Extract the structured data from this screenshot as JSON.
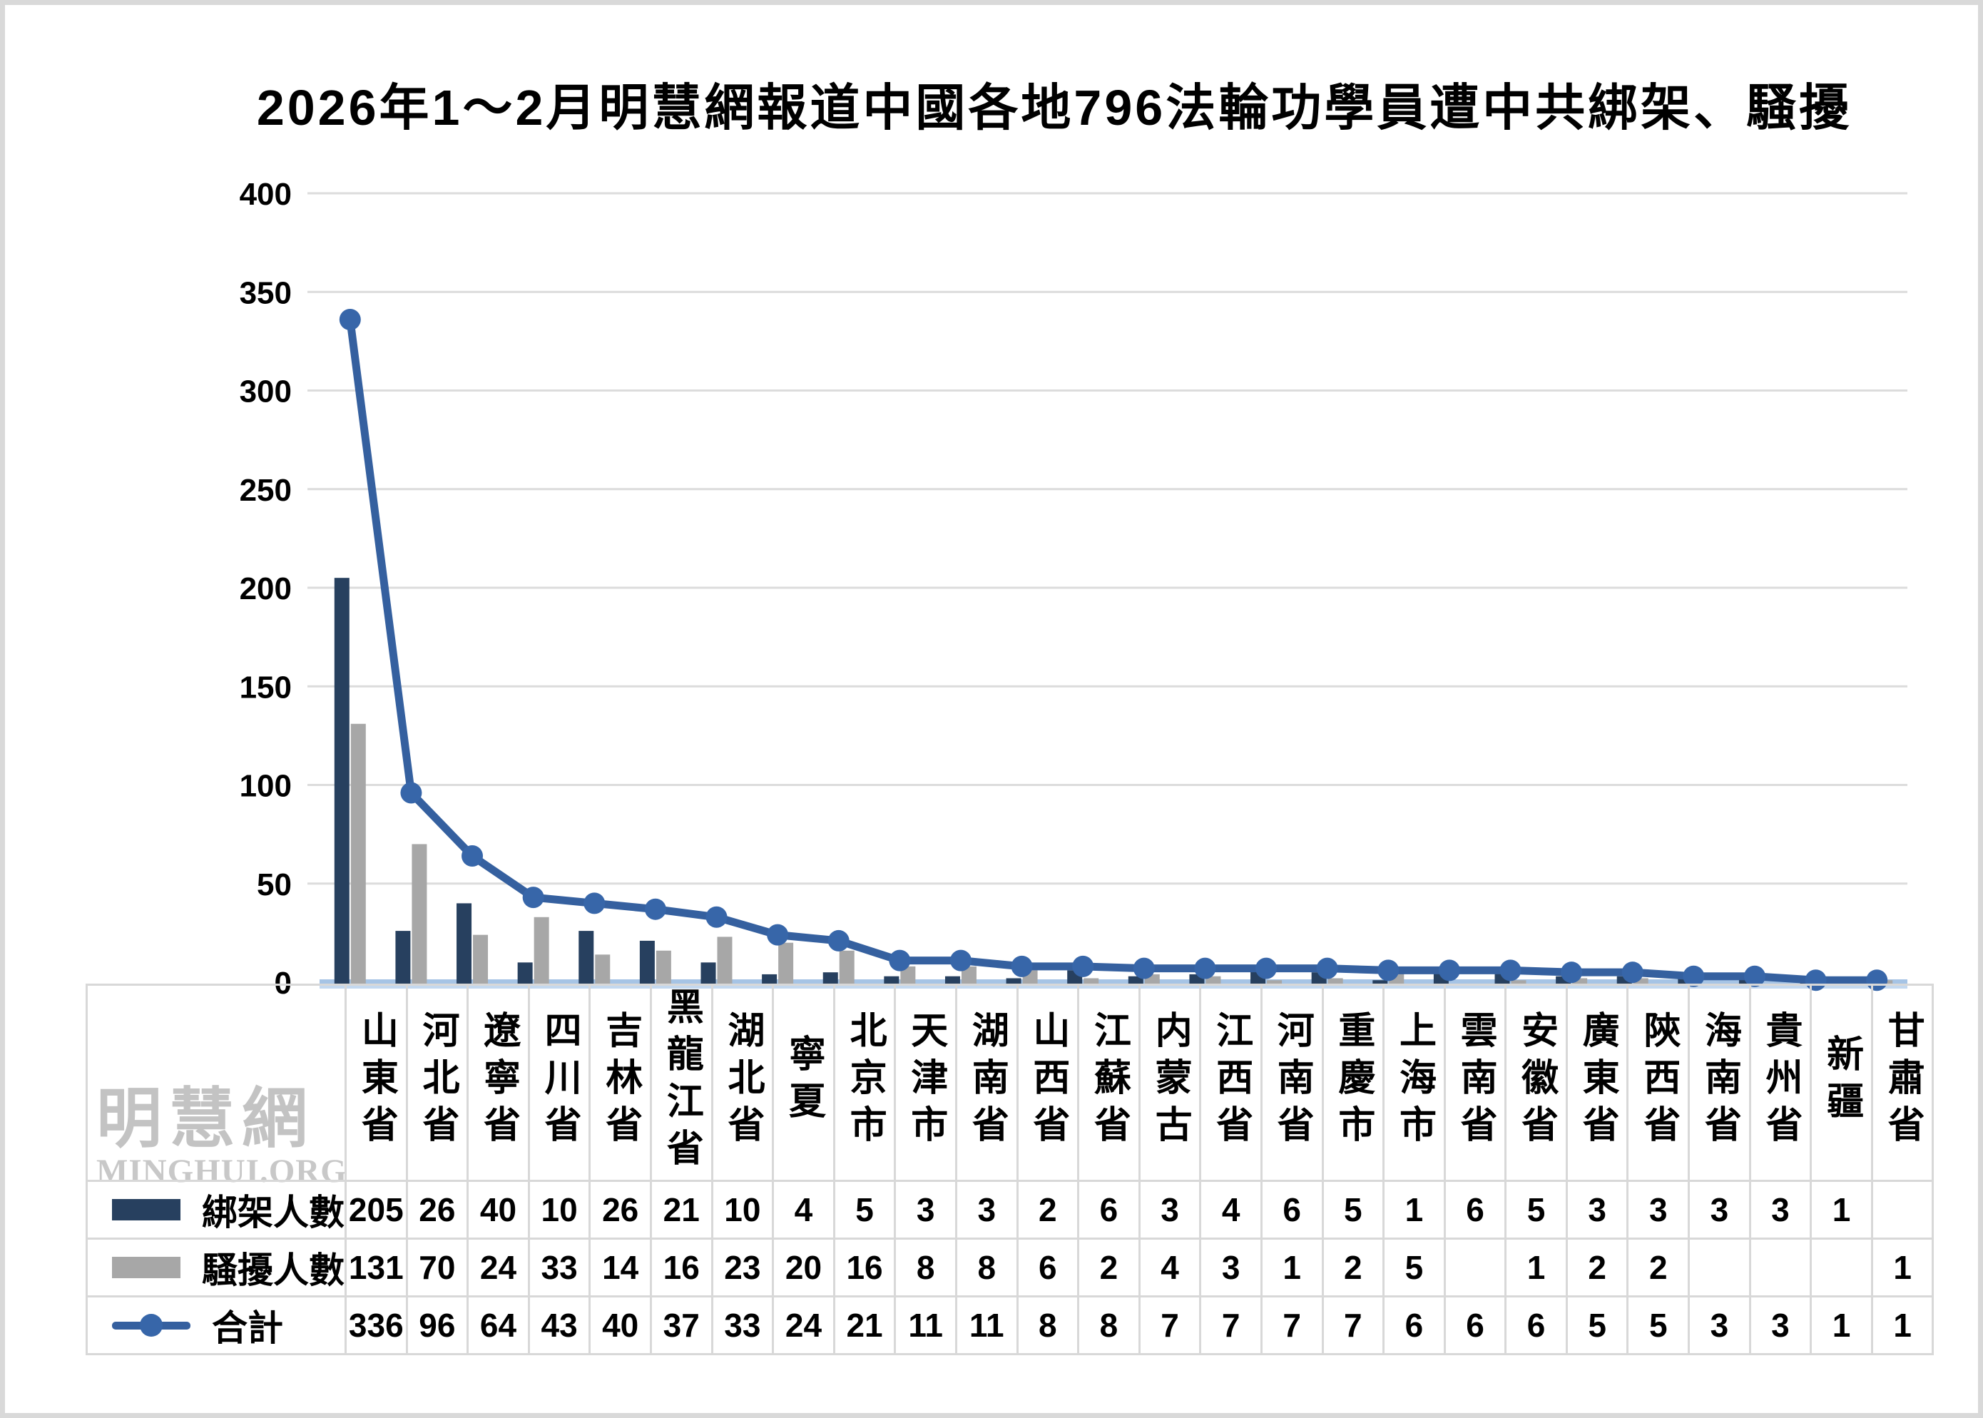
{
  "watermark": {
    "line1": "明慧網",
    "line2": "MINGHUI.ORG"
  },
  "colors": {
    "page_frame": "#d9d9d9",
    "background": "#ffffff",
    "gridline": "#dcdcdc",
    "axis_band_top": "#a6c4e5",
    "axis_band_bottom": "#c3d8ef",
    "table_border": "#d8d8d8",
    "watermark_text": "#c3c3c3",
    "text": "#000000"
  },
  "chart_data": {
    "type": "bar",
    "combo": "grouped bars + total line with circle markers",
    "title": "2026年1～2月明慧網報道中國各地796法輪功學員遭中共綁架、騷擾",
    "xlabel": "",
    "ylabel": "",
    "ylim": [
      0,
      400
    ],
    "ytick_step": 50,
    "grid": true,
    "legend_position": "table-left",
    "categories": [
      "山東省",
      "河北省",
      "遼寧省",
      "四川省",
      "吉林省",
      "黑龍江省",
      "湖北省",
      "寧夏",
      "北京市",
      "天津市",
      "湖南省",
      "山西省",
      "江蘇省",
      "内蒙古",
      "江西省",
      "河南省",
      "重慶市",
      "上海市",
      "雲南省",
      "安徽省",
      "廣東省",
      "陝西省",
      "海南省",
      "貴州省",
      "新疆",
      "甘肅省"
    ],
    "series": [
      {
        "name": "綁架人數",
        "type": "bar",
        "color": "#27405f",
        "values": [
          205,
          26,
          40,
          10,
          26,
          21,
          10,
          4,
          5,
          3,
          3,
          2,
          6,
          3,
          4,
          6,
          5,
          1,
          6,
          5,
          3,
          3,
          3,
          3,
          1,
          null
        ]
      },
      {
        "name": "騷擾人數",
        "type": "bar",
        "color": "#a7a7a7",
        "values": [
          131,
          70,
          24,
          33,
          14,
          16,
          23,
          20,
          16,
          8,
          8,
          6,
          2,
          4,
          3,
          1,
          2,
          5,
          null,
          1,
          2,
          2,
          null,
          null,
          null,
          1
        ]
      },
      {
        "name": "合計",
        "type": "line",
        "color": "#35609f",
        "marker_color": "#3766a9",
        "values": [
          336,
          96,
          64,
          43,
          40,
          37,
          33,
          24,
          21,
          11,
          11,
          8,
          8,
          7,
          7,
          7,
          7,
          6,
          6,
          6,
          5,
          5,
          3,
          3,
          1,
          1
        ]
      }
    ]
  }
}
